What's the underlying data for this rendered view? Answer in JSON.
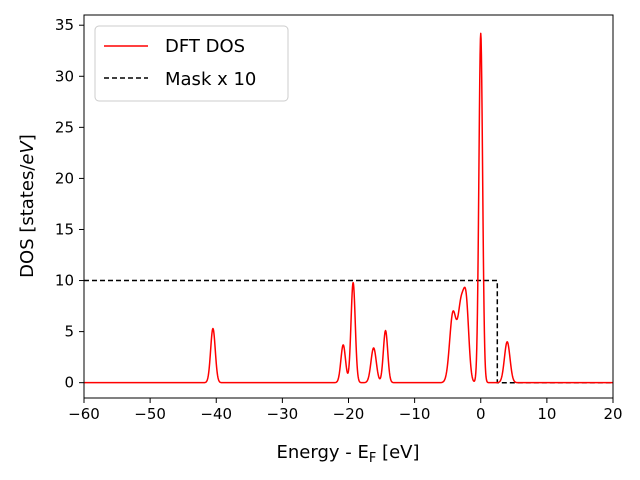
{
  "chart_data": {
    "type": "line",
    "xlabel_main": "Energy - E",
    "xlabel_sub": "F",
    "xlabel_tail": " [eV]",
    "ylabel_main": "DOS [states/",
    "ylabel_italic": "eV",
    "ylabel_tail": "]",
    "xlim": [
      -60,
      20
    ],
    "ylim": [
      -1.5,
      36
    ],
    "xticks": [
      -60,
      -50,
      -40,
      -30,
      -20,
      -10,
      0,
      10,
      20
    ],
    "xtick_labels": [
      "−60",
      "−50",
      "−40",
      "−30",
      "−20",
      "−10",
      "0",
      "10",
      "20"
    ],
    "yticks": [
      0,
      5,
      10,
      15,
      20,
      25,
      30,
      35
    ],
    "ytick_labels": [
      "0",
      "5",
      "10",
      "15",
      "20",
      "25",
      "30",
      "35"
    ],
    "legend_position": "top-left",
    "series": [
      {
        "name": "DFT DOS",
        "color": "#ff0000",
        "style": "solid",
        "peaks": [
          {
            "center": -40.5,
            "height": 5.3,
            "width": 0.35
          },
          {
            "center": -20.8,
            "height": 3.7,
            "width": 0.35
          },
          {
            "center": -19.3,
            "height": 9.8,
            "width": 0.32
          },
          {
            "center": -16.2,
            "height": 3.4,
            "width": 0.4
          },
          {
            "center": -14.4,
            "height": 5.1,
            "width": 0.33
          },
          {
            "center": -4.2,
            "height": 6.8,
            "width": 0.5
          },
          {
            "center": -3.0,
            "height": 7.0,
            "width": 0.45
          },
          {
            "center": -2.2,
            "height": 7.3,
            "width": 0.4
          },
          {
            "center": 0.0,
            "height": 34.2,
            "width": 0.28
          },
          {
            "center": 4.0,
            "height": 4.0,
            "width": 0.42
          }
        ]
      },
      {
        "name": "Mask x 10",
        "color": "#000000",
        "style": "dashed",
        "points": [
          [
            -60,
            10
          ],
          [
            2.5,
            10
          ],
          [
            2.5,
            0
          ],
          [
            20,
            0
          ]
        ]
      }
    ]
  }
}
